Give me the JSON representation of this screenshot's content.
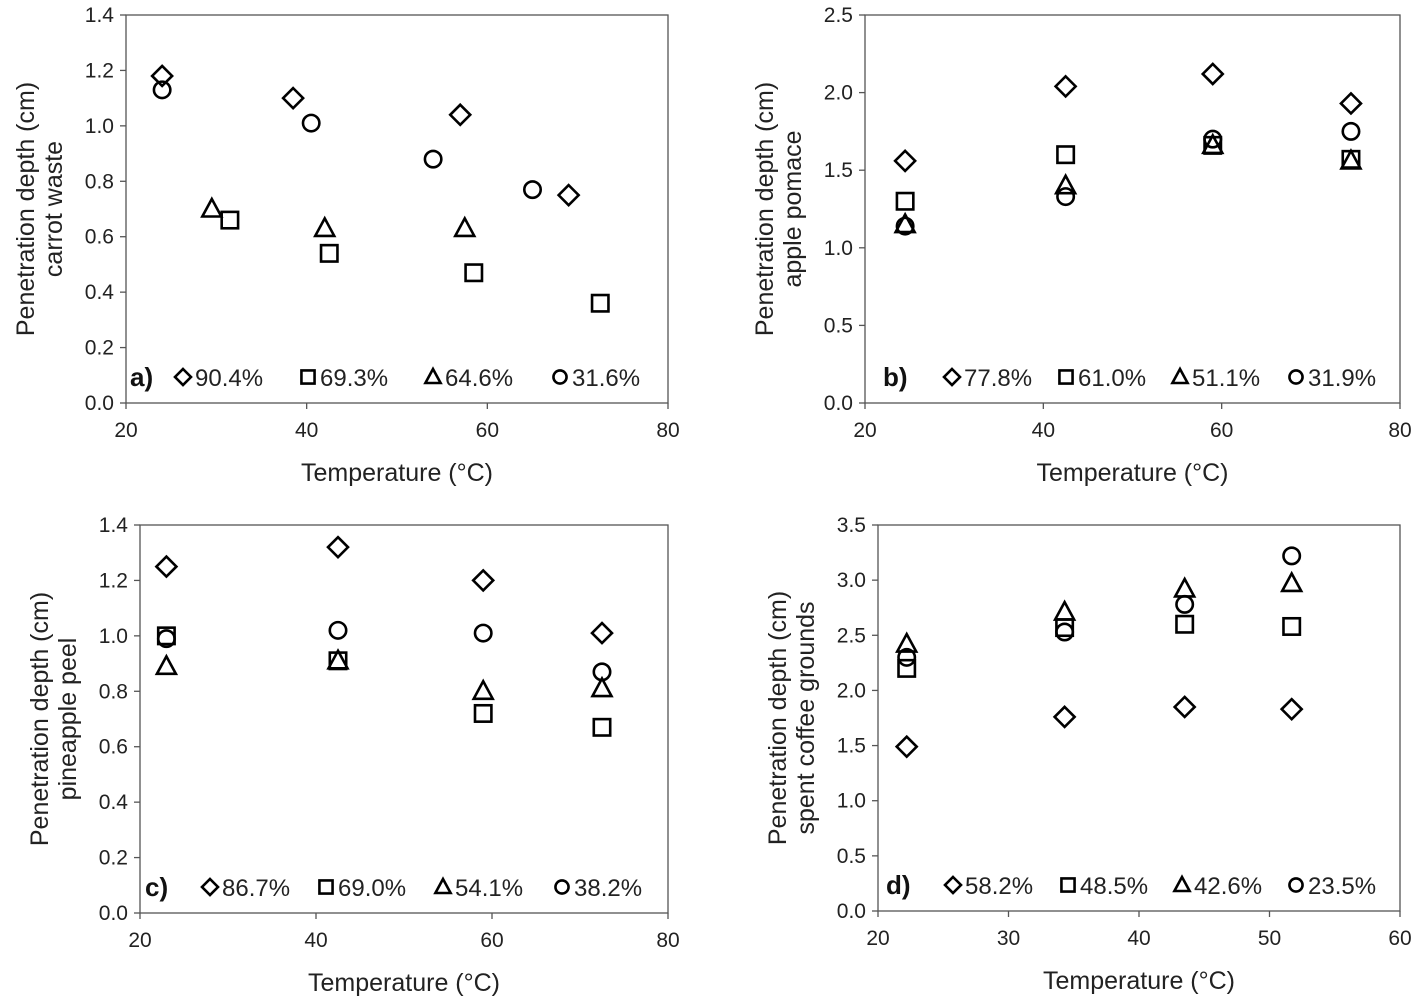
{
  "chart_data": [
    {
      "type": "scatter",
      "panel_label": "a)",
      "xlabel": "Temperature (°C)",
      "ylabel_lines": [
        "Penetration depth (cm)",
        "carrot waste"
      ],
      "xlim": [
        20,
        80
      ],
      "xticks": [
        20,
        40,
        60,
        80
      ],
      "ylim": [
        0,
        1.4
      ],
      "yticks": [
        0.0,
        0.2,
        0.4,
        0.6,
        0.8,
        1.0,
        1.2,
        1.4
      ],
      "ydecimals": 1,
      "legend_position": "bottom inside",
      "series": [
        {
          "name": "90.4%",
          "marker": "diamond",
          "x": [
            24,
            38.5,
            57,
            69
          ],
          "y": [
            1.18,
            1.1,
            1.04,
            0.75
          ]
        },
        {
          "name": "69.3%",
          "marker": "square",
          "x": [
            31.5,
            42.5,
            58.5,
            72.5
          ],
          "y": [
            0.66,
            0.54,
            0.47,
            0.36
          ]
        },
        {
          "name": "64.6%",
          "marker": "triangle",
          "x": [
            29.5,
            42,
            57.5
          ],
          "y": [
            0.7,
            0.63,
            0.63
          ]
        },
        {
          "name": "31.6%",
          "marker": "circle",
          "x": [
            24,
            40.5,
            54,
            65
          ],
          "y": [
            1.13,
            1.01,
            0.88,
            0.77
          ]
        }
      ]
    },
    {
      "type": "scatter",
      "panel_label": "b)",
      "xlabel": "Temperature (°C)",
      "ylabel_lines": [
        "Penetration depth (cm)",
        "apple pomace"
      ],
      "xlim": [
        20,
        80
      ],
      "xticks": [
        20,
        40,
        60,
        80
      ],
      "ylim": [
        0,
        2.5
      ],
      "yticks": [
        0.0,
        0.5,
        1.0,
        1.5,
        2.0,
        2.5
      ],
      "ydecimals": 1,
      "legend_position": "bottom inside",
      "series": [
        {
          "name": "77.8%",
          "marker": "diamond",
          "x": [
            24.5,
            42.5,
            59,
            74.5
          ],
          "y": [
            1.56,
            2.04,
            2.12,
            1.93
          ]
        },
        {
          "name": "61.0%",
          "marker": "square",
          "x": [
            24.5,
            42.5,
            59,
            74.5
          ],
          "y": [
            1.3,
            1.6,
            1.66,
            1.57
          ]
        },
        {
          "name": "51.1%",
          "marker": "triangle",
          "x": [
            24.5,
            42.5,
            59,
            74.5
          ],
          "y": [
            1.15,
            1.4,
            1.66,
            1.56
          ]
        },
        {
          "name": "31.9%",
          "marker": "circle",
          "x": [
            24.5,
            42.5,
            59,
            74.5
          ],
          "y": [
            1.14,
            1.33,
            1.7,
            1.75
          ]
        }
      ]
    },
    {
      "type": "scatter",
      "panel_label": "c)",
      "xlabel": "Temperature (°C)",
      "ylabel_lines": [
        "Penetration depth (cm)",
        "pineapple peel"
      ],
      "xlim": [
        20,
        80
      ],
      "xticks": [
        20,
        40,
        60,
        80
      ],
      "ylim": [
        0,
        1.4
      ],
      "yticks": [
        0.0,
        0.2,
        0.4,
        0.6,
        0.8,
        1.0,
        1.2,
        1.4
      ],
      "ydecimals": 1,
      "legend_position": "bottom inside",
      "series": [
        {
          "name": "86.7%",
          "marker": "diamond",
          "x": [
            23,
            42.5,
            59,
            72.5
          ],
          "y": [
            1.25,
            1.32,
            1.2,
            1.01
          ]
        },
        {
          "name": "69.0%",
          "marker": "square",
          "x": [
            23,
            42.5,
            59,
            72.5
          ],
          "y": [
            1.0,
            0.91,
            0.72,
            0.67
          ]
        },
        {
          "name": "54.1%",
          "marker": "triangle",
          "x": [
            23,
            42.5,
            59,
            72.5
          ],
          "y": [
            0.89,
            0.91,
            0.8,
            0.81
          ]
        },
        {
          "name": "38.2%",
          "marker": "circle",
          "x": [
            23,
            42.5,
            59,
            72.5
          ],
          "y": [
            0.99,
            1.02,
            1.01,
            0.87
          ]
        }
      ]
    },
    {
      "type": "scatter",
      "panel_label": "d)",
      "xlabel": "Temperature (°C)",
      "ylabel_lines": [
        "Penetration depth (cm)",
        "spent coffee grounds"
      ],
      "xlim": [
        20,
        60
      ],
      "xticks": [
        20,
        30,
        40,
        50,
        60
      ],
      "ylim": [
        0,
        3.5
      ],
      "yticks": [
        0.0,
        0.5,
        1.0,
        1.5,
        2.0,
        2.5,
        3.0,
        3.5
      ],
      "ydecimals": 1,
      "legend_position": "bottom inside",
      "series": [
        {
          "name": "58.2%",
          "marker": "diamond",
          "x": [
            22.2,
            34.3,
            43.5,
            51.7
          ],
          "y": [
            1.49,
            1.76,
            1.85,
            1.83
          ]
        },
        {
          "name": "48.5%",
          "marker": "square",
          "x": [
            22.2,
            34.3,
            43.5,
            51.7
          ],
          "y": [
            2.2,
            2.57,
            2.6,
            2.58
          ]
        },
        {
          "name": "42.6%",
          "marker": "triangle",
          "x": [
            22.2,
            34.3,
            43.5,
            51.7
          ],
          "y": [
            2.42,
            2.71,
            2.92,
            2.97
          ]
        },
        {
          "name": "23.5%",
          "marker": "circle",
          "x": [
            22.2,
            34.3,
            43.5,
            51.7
          ],
          "y": [
            2.3,
            2.53,
            2.78,
            3.22
          ]
        }
      ]
    }
  ]
}
